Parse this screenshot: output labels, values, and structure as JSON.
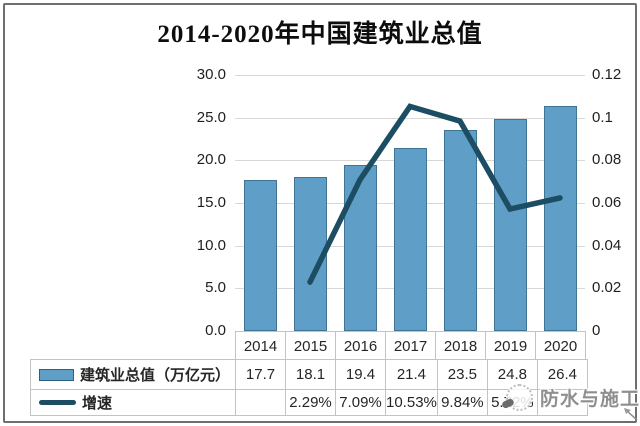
{
  "title": "2014-2020年中国建筑业总值",
  "watermark": {
    "text": "防水与施工"
  },
  "chart_data": {
    "type": "bar",
    "subtype": "combo bar+line, dual axis",
    "title": "2014-2020年中国建筑业总值",
    "categories": [
      "2014",
      "2015",
      "2016",
      "2017",
      "2018",
      "2019",
      "2020"
    ],
    "series": [
      {
        "name": "建筑业总值（万亿元）",
        "type": "bar",
        "axis": "left",
        "values": [
          17.7,
          18.1,
          19.4,
          21.4,
          23.5,
          24.8,
          26.4
        ]
      },
      {
        "name": "增速",
        "type": "line",
        "axis": "right",
        "values": [
          null,
          0.0229,
          0.0709,
          0.1053,
          0.0984,
          0.0572,
          0.0624
        ]
      }
    ],
    "left_axis": {
      "min": 0,
      "max": 30,
      "ticks": [
        "30.0",
        "25.0",
        "20.0",
        "15.0",
        "10.0",
        "5.0",
        "0.0"
      ]
    },
    "right_axis": {
      "min": 0,
      "max": 0.12,
      "ticks": [
        "0.12",
        "0.1",
        "0.08",
        "0.06",
        "0.04",
        "0.02",
        "0"
      ]
    },
    "grid": true,
    "legend_position": "table rows at left"
  },
  "table": {
    "header_years": [
      "2014",
      "2015",
      "2016",
      "2017",
      "2018",
      "2019",
      "2020"
    ],
    "rows": [
      {
        "label": "建筑业总值（万亿元）",
        "legend": "bar-swatch",
        "values": [
          "17.7",
          "18.1",
          "19.4",
          "21.4",
          "23.5",
          "24.8",
          "26.4"
        ]
      },
      {
        "label": "增速",
        "legend": "line-swatch",
        "values": [
          "",
          "2.29%",
          "7.09%",
          "10.53%",
          "9.84%",
          "5.72%",
          ""
        ]
      }
    ]
  },
  "colors": {
    "bar_fill": "#5f9ec6",
    "bar_border": "#3f7494",
    "line": "#1c4d63",
    "grid": "#d8d8d8",
    "table_border": "#c3c3c3",
    "frame_border": "#6e6e6e",
    "watermark_text": "#8f8f8f"
  }
}
